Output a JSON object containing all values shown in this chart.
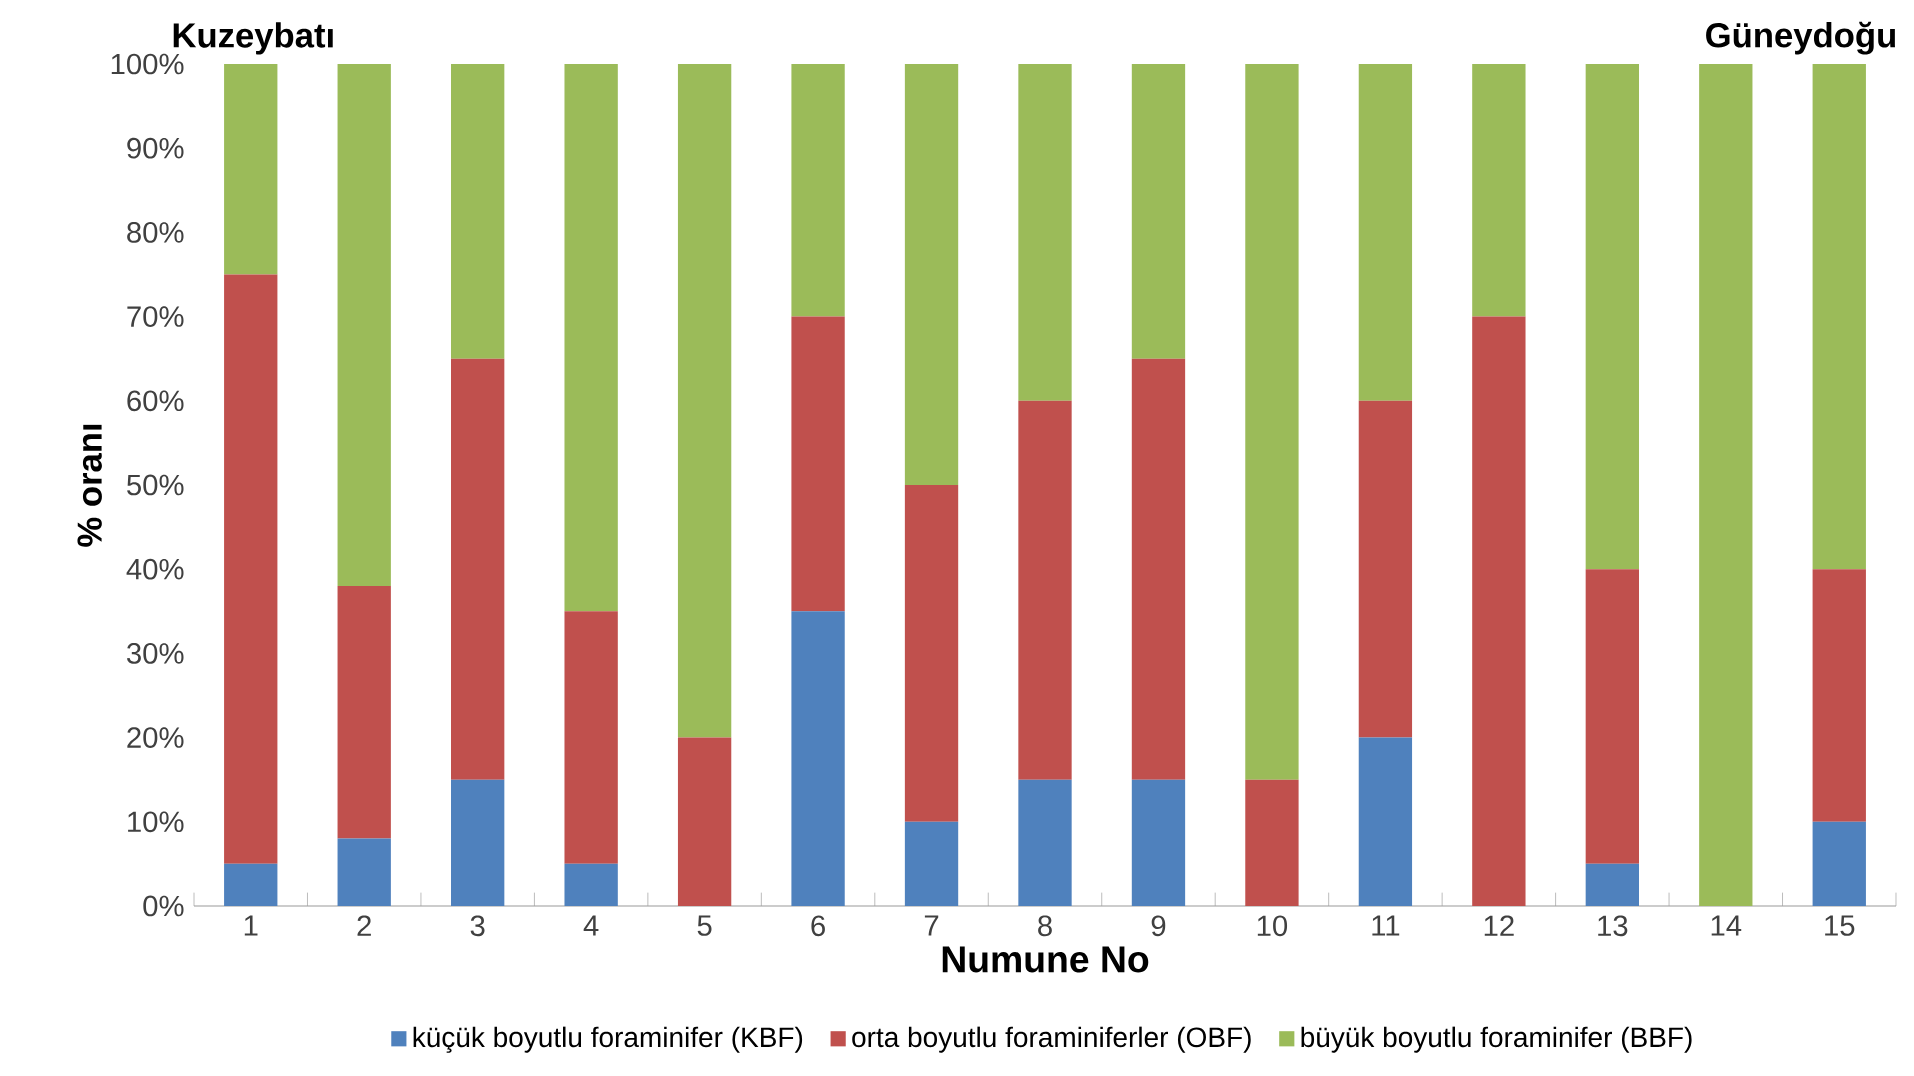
{
  "chart_data": {
    "type": "bar",
    "stacked": true,
    "categories": [
      "1",
      "2",
      "3",
      "4",
      "5",
      "6",
      "7",
      "8",
      "9",
      "10",
      "11",
      "12",
      "13",
      "14",
      "15"
    ],
    "series": [
      {
        "name": "küçük boyutlu foraminifer (KBF)",
        "color": "#4f81bd",
        "values": [
          5,
          8,
          15,
          5,
          0,
          35,
          10,
          15,
          15,
          0,
          20,
          0,
          5,
          0,
          10
        ]
      },
      {
        "name": "orta boyutlu foraminiferler (OBF)",
        "color": "#c0504d",
        "values": [
          70,
          30,
          50,
          30,
          20,
          35,
          40,
          45,
          50,
          15,
          40,
          70,
          35,
          0,
          30
        ]
      },
      {
        "name": "büyük boyutlu foraminifer (BBF)",
        "color": "#9bbb59",
        "values": [
          25,
          62,
          35,
          65,
          80,
          30,
          50,
          40,
          35,
          85,
          40,
          30,
          60,
          100,
          60
        ]
      }
    ],
    "xlabel": "Numune No",
    "ylabel": "% oranı",
    "ylim": [
      0,
      100
    ],
    "yticks": [
      {
        "value": 0,
        "label": "0%"
      },
      {
        "value": 10,
        "label": "10%"
      },
      {
        "value": 20,
        "label": "20%"
      },
      {
        "value": 30,
        "label": "30%"
      },
      {
        "value": 40,
        "label": "40%"
      },
      {
        "value": 50,
        "label": "50%"
      },
      {
        "value": 60,
        "label": "60%"
      },
      {
        "value": 70,
        "label": "70%"
      },
      {
        "value": 80,
        "label": "80%"
      },
      {
        "value": 90,
        "label": "90%"
      },
      {
        "value": 100,
        "label": "100%"
      }
    ],
    "annotations": [
      "Kuzeybatı",
      "Güneydoğu"
    ],
    "legend": "bottom"
  }
}
